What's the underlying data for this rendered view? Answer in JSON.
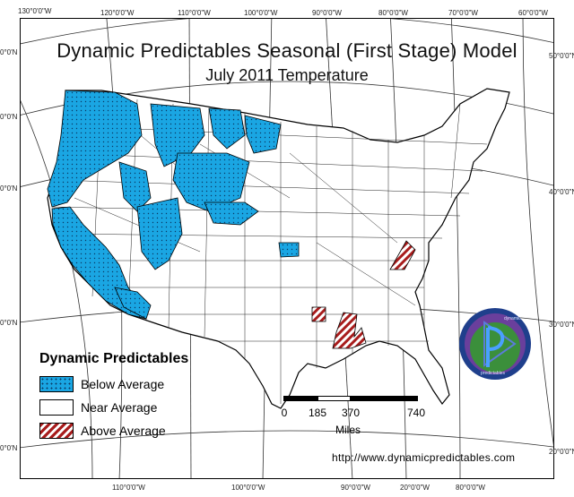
{
  "title": "Dynamic Predictables Seasonal (First Stage) Model",
  "subtitle": "July 2011 Temperature",
  "ticks_top": [
    "130°0'0\"W",
    "120°0'0\"W",
    "110°0'0\"W",
    "100°0'0\"W",
    "90°0'0\"W",
    "80°0'0\"W",
    "70°0'0\"W",
    "60°0'0\"W"
  ],
  "ticks_bottom": [
    "110°0'0\"W",
    "100°0'0\"W",
    "90°0'0\"W",
    "20°0'0\"W",
    "80°0'0\"W"
  ],
  "ticks_right": [
    "50°0'0\"N",
    "40°0'0\"N",
    "30°0'0\"N",
    "20°0'0\"N"
  ],
  "ticks_left": [
    "0°0'N",
    "0°0'N",
    "0°0'N",
    "0°0'N",
    "0°0'N"
  ],
  "legend": {
    "heading": "Dynamic Predictables",
    "items": [
      {
        "label": "Below Average",
        "class": "below"
      },
      {
        "label": "Near Average",
        "class": "near"
      },
      {
        "label": "Above Average",
        "class": "above"
      }
    ]
  },
  "scale": {
    "labels": [
      "0",
      "185",
      "370",
      "740"
    ],
    "unit": "Miles"
  },
  "url": "http://www.dynamicpredictables.com",
  "logo": {
    "top_text": "dynamic",
    "bottom_text": "predictables"
  },
  "colors": {
    "below": "#1aa6e3",
    "above": "#a81c1c",
    "near": "#ffffff",
    "logo_ring": "#1f3f8c",
    "logo_fill": "#3b8f3b"
  }
}
